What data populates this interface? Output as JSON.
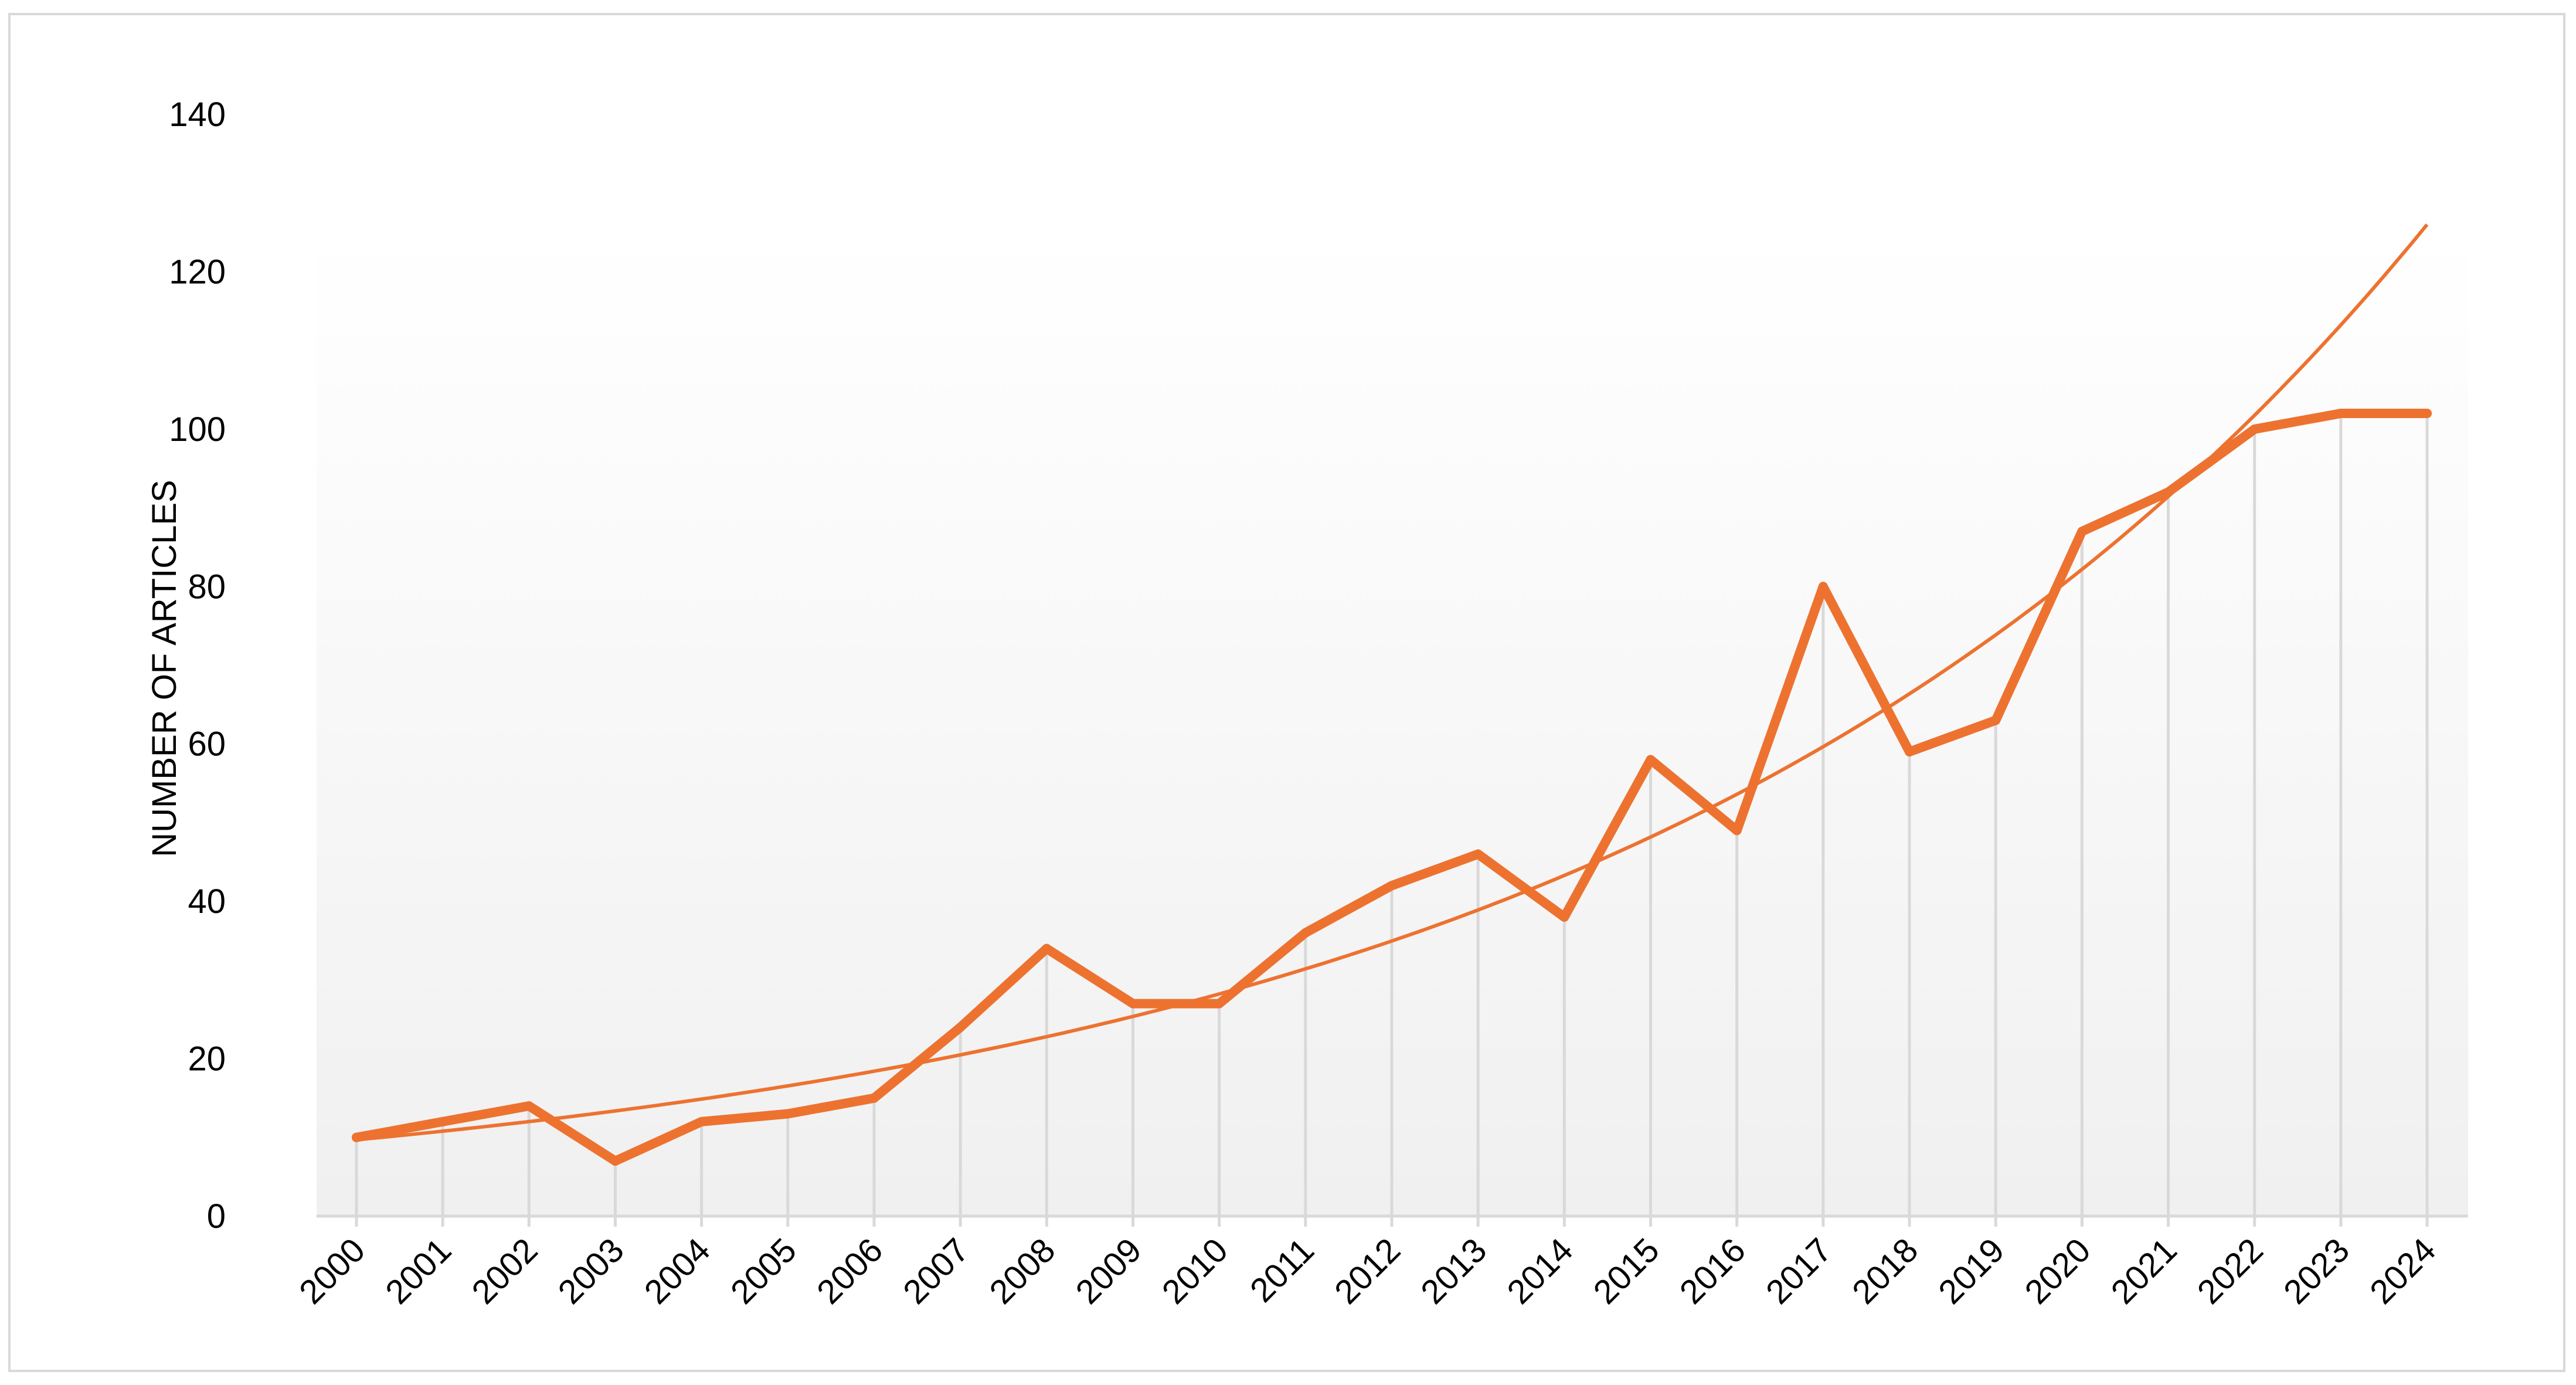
{
  "chart_data": {
    "type": "line",
    "title": "",
    "xlabel": "",
    "ylabel": "NUMBER OF ARTICLES",
    "categories": [
      "2000",
      "2001",
      "2002",
      "2003",
      "2004",
      "2005",
      "2006",
      "2007",
      "2008",
      "2009",
      "2010",
      "2011",
      "2012",
      "2013",
      "2014",
      "2015",
      "2016",
      "2017",
      "2018",
      "2019",
      "2020",
      "2021",
      "2022",
      "2023",
      "2024"
    ],
    "series": [
      {
        "values": [
          10,
          12,
          14,
          7,
          12,
          13,
          15,
          24,
          34,
          27,
          27,
          36,
          42,
          46,
          38,
          58,
          49,
          80,
          59,
          63,
          87,
          92,
          100,
          102,
          102
        ]
      }
    ],
    "trendline": {
      "type": "exponential",
      "start_value": 9.7,
      "end_value": 126
    },
    "ylim": [
      0,
      140
    ],
    "yticks": [
      0,
      20,
      40,
      60,
      80,
      100,
      120,
      140
    ],
    "vertical_drop_lines": true,
    "plot_background": "gradient light gray",
    "legend": "none",
    "colors": {
      "series": "#ED7230",
      "trendline": "#ED7230",
      "drop_lines": "#d9d9d9",
      "axis": "#d9d9d9",
      "gradient_top": "#ffffff",
      "gradient_bottom": "#f0f0f0"
    }
  }
}
